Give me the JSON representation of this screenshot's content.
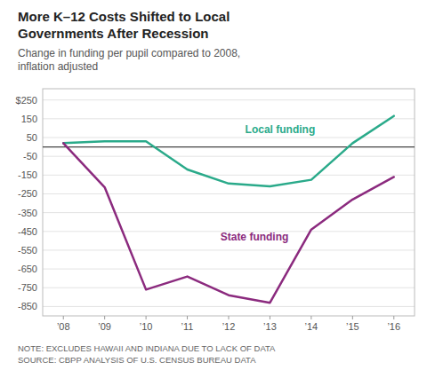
{
  "chart_data": {
    "type": "line",
    "title": "More K–12 Costs Shifted to Local\nGovernments After Recession",
    "subtitle": "Change in funding per pupil compared to 2008,\ninflation adjusted",
    "annotations": [
      "NOTE: EXCLUDES HAWAII AND INDIANA DUE TO LACK OF DATA",
      "SOURCE: CBPP ANALYSIS OF U.S. CENSUS BUREAU DATA"
    ],
    "x": [
      2008,
      2009,
      2010,
      2011,
      2012,
      2013,
      2014,
      2015,
      2016
    ],
    "xlim": [
      2007.5,
      2016.5
    ],
    "xticks": [
      {
        "value": 2008,
        "label": "’08"
      },
      {
        "value": 2009,
        "label": "’09"
      },
      {
        "value": 2010,
        "label": "’10"
      },
      {
        "value": 2011,
        "label": "’11"
      },
      {
        "value": 2012,
        "label": "’12"
      },
      {
        "value": 2013,
        "label": "’13"
      },
      {
        "value": 2014,
        "label": "’14"
      },
      {
        "value": 2015,
        "label": "’15"
      },
      {
        "value": 2016,
        "label": "’16"
      }
    ],
    "ylim": [
      -900,
      310
    ],
    "yticks": [
      {
        "value": 250,
        "label": "$250"
      },
      150,
      50,
      -50,
      -150,
      -250,
      -350,
      -450,
      -550,
      -650,
      -750,
      -850
    ],
    "grid": true,
    "series": [
      {
        "name": "Local funding",
        "color": "#2aaa8a",
        "values": [
          20,
          30,
          30,
          -120,
          -195,
          -210,
          -175,
          20,
          165
        ]
      },
      {
        "name": "State funding",
        "color": "#8b2a7e",
        "values": [
          20,
          -215,
          -760,
          -690,
          -790,
          -830,
          -440,
          -280,
          -160
        ]
      }
    ]
  }
}
